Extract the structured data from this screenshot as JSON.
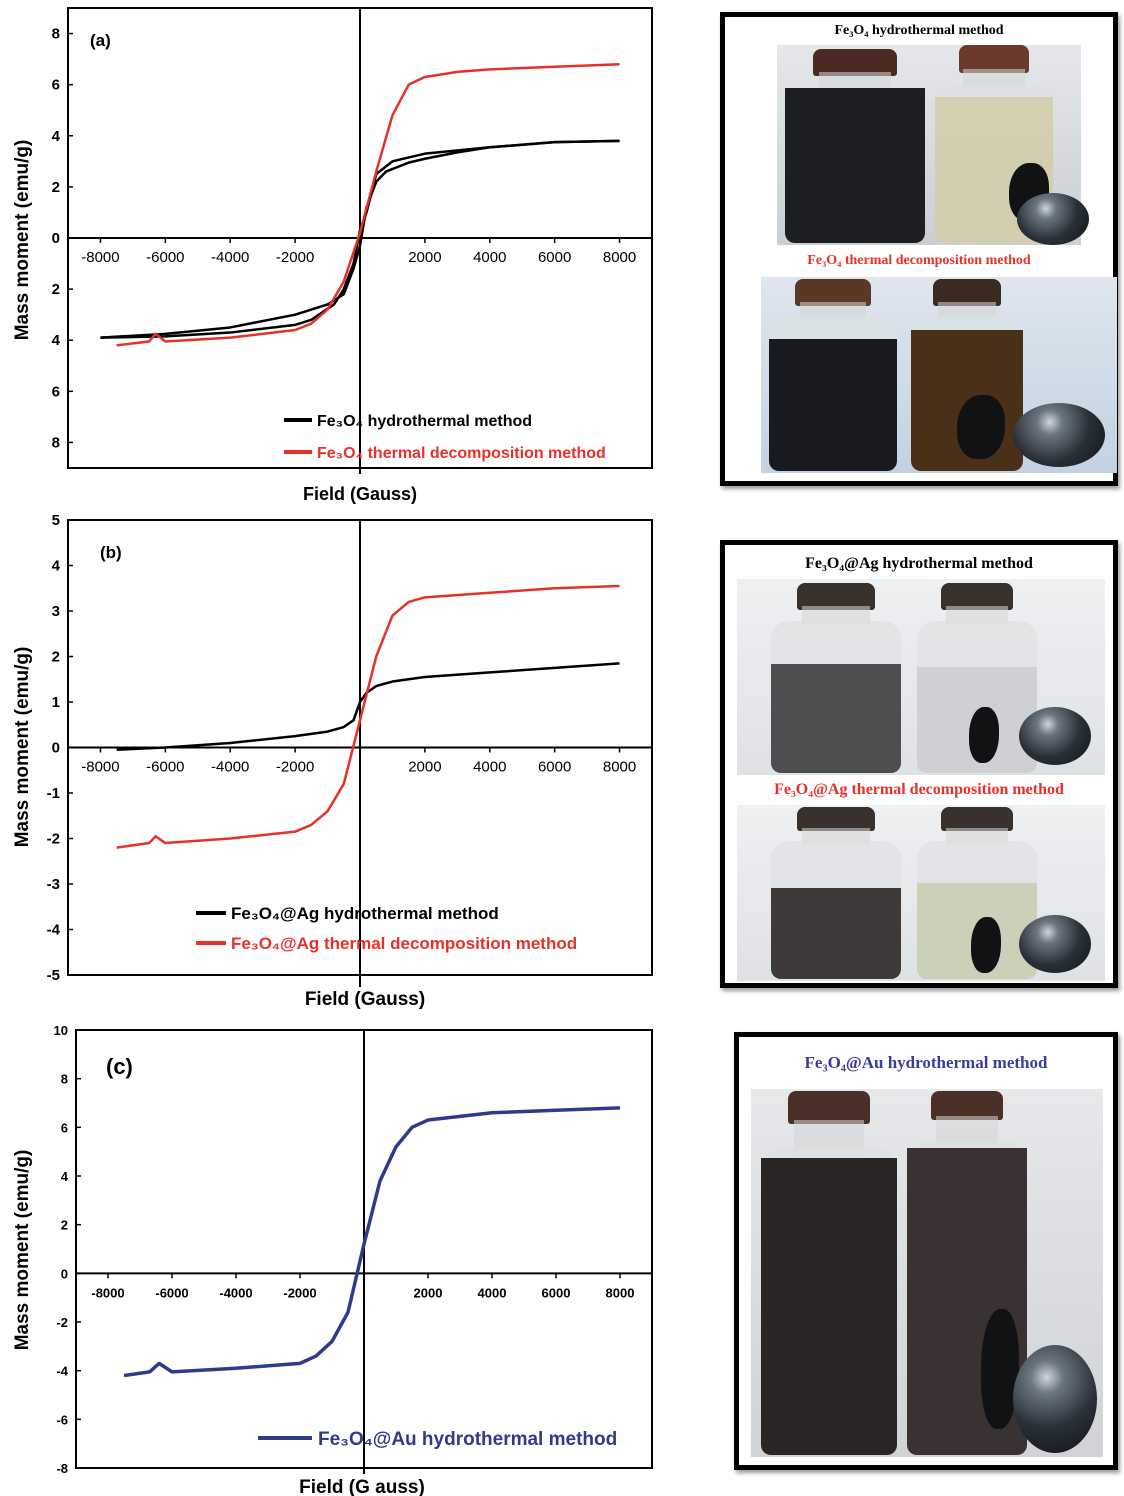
{
  "charts": [
    {
      "panel_label": "(a)",
      "xlabel": "Field (Gauss)",
      "ylabel": "Mass moment (emu/g)",
      "x_ticks": [
        "-8000",
        "-6000",
        "-4000",
        "-2000",
        "0",
        "2000",
        "4000",
        "6000",
        "8000"
      ],
      "y_ticks": [
        "8",
        "6",
        "4",
        "2",
        "0",
        "2",
        "4",
        "6",
        "8"
      ],
      "legend": [
        "Fe₃O₄ hydrothermal method",
        "Fe₃O₄ thermal decomposition method"
      ]
    },
    {
      "panel_label": "(b)",
      "xlabel": "Field (Gauss)",
      "ylabel": "Mass moment (emu/g)",
      "x_ticks": [
        "-8000",
        "-6000",
        "-4000",
        "-2000",
        "0",
        "2000",
        "4000",
        "6000",
        "8000"
      ],
      "y_ticks": [
        "5",
        "4",
        "3",
        "2",
        "1",
        "0",
        "-1",
        "-2",
        "-3",
        "-4",
        "-5"
      ],
      "legend": [
        "Fe₃O₄@Ag hydrothermal method",
        "Fe₃O₄@Ag thermal decomposition method"
      ]
    },
    {
      "panel_label": "(c)",
      "xlabel": "Field (G auss)",
      "ylabel": "Mass moment (emu/g)",
      "x_ticks": [
        "-8000",
        "-6000",
        "-4000",
        "-2000",
        "0",
        "2000",
        "4000",
        "6000",
        "8000"
      ],
      "y_ticks": [
        "10",
        "8",
        "6",
        "4",
        "2",
        "0",
        "-2",
        "-4",
        "-6",
        "-8"
      ],
      "legend": [
        "Fe₃O₄@Au hydrothermal method"
      ]
    }
  ],
  "photos": {
    "a_top": "Fe₃O₄ hydrothermal method",
    "a_bottom": "Fe₃O₄ thermal decomposition method",
    "b_top": "Fe₃O₄@Ag hydrothermal method",
    "b_bottom": "Fe₃O₄@Ag thermal decomposition method",
    "c_top": "Fe₃O₄@Au hydrothermal method"
  },
  "colors": {
    "black_series": "#000000",
    "red_series": "#e8302a",
    "blue_series": "#2e3a8c",
    "axis": "#000000"
  },
  "chart_data": [
    {
      "type": "line",
      "title": "(a)",
      "xlabel": "Field (Gauss)",
      "ylabel": "Mass moment (emu/g)",
      "xlim": [
        -9000,
        9000
      ],
      "ylim": [
        -9,
        9
      ],
      "grid": false,
      "legend_position": "bottom-right",
      "series": [
        {
          "name": "Fe₃O₄ hydrothermal method",
          "color": "#000000",
          "x": [
            -8000,
            -6000,
            -4000,
            -2000,
            -1000,
            -500,
            -200,
            0,
            200,
            500,
            800,
            1500,
            2000,
            3000,
            4000,
            6000,
            8000
          ],
          "y": [
            -3.9,
            -3.75,
            -3.5,
            -3.0,
            -2.6,
            -2.2,
            -1.2,
            -0.3,
            1.2,
            2.2,
            2.6,
            2.95,
            3.1,
            3.35,
            3.55,
            3.75,
            3.8
          ],
          "x_return": [
            8000,
            6000,
            4000,
            2000,
            1000,
            500,
            200,
            0,
            -200,
            -500,
            -800,
            -1500,
            -2000,
            -4000,
            -6000,
            -8000
          ],
          "y_return": [
            3.8,
            3.75,
            3.55,
            3.3,
            3.0,
            2.5,
            1.0,
            0.3,
            -1.0,
            -2.0,
            -2.6,
            -3.2,
            -3.4,
            -3.7,
            -3.85,
            -3.9
          ]
        },
        {
          "name": "Fe₃O₄ thermal decomposition method",
          "color": "#e8302a",
          "x": [
            -7500,
            -6500,
            -6300,
            -6000,
            -4000,
            -2000,
            -1500,
            -1000,
            -500,
            0,
            500,
            1000,
            1500,
            2000,
            3000,
            4000,
            6000,
            8000
          ],
          "y": [
            -4.2,
            -4.05,
            -3.75,
            -4.05,
            -3.9,
            -3.6,
            -3.35,
            -2.8,
            -1.7,
            0.2,
            2.6,
            4.8,
            6.0,
            6.3,
            6.5,
            6.6,
            6.7,
            6.8
          ]
        }
      ]
    },
    {
      "type": "line",
      "title": "(b)",
      "xlabel": "Field (Gauss)",
      "ylabel": "Mass moment (emu/g)",
      "xlim": [
        -9000,
        9000
      ],
      "ylim": [
        -5,
        5
      ],
      "grid": false,
      "legend_position": "bottom-right",
      "series": [
        {
          "name": "Fe₃O₄@Ag hydrothermal method",
          "color": "#000000",
          "x": [
            -7500,
            -6000,
            -4000,
            -2000,
            -1000,
            -500,
            -200,
            0,
            200,
            500,
            1000,
            2000,
            4000,
            6000,
            8000
          ],
          "y": [
            -0.05,
            0.0,
            0.1,
            0.25,
            0.35,
            0.45,
            0.6,
            1.0,
            1.2,
            1.35,
            1.45,
            1.55,
            1.65,
            1.75,
            1.85
          ]
        },
        {
          "name": "Fe₃O₄@Ag thermal decomposition method",
          "color": "#e8302a",
          "x": [
            -7500,
            -6500,
            -6300,
            -6000,
            -4000,
            -2000,
            -1500,
            -1000,
            -500,
            0,
            500,
            1000,
            1500,
            2000,
            4000,
            6000,
            8000
          ],
          "y": [
            -2.2,
            -2.1,
            -1.95,
            -2.1,
            -2.0,
            -1.85,
            -1.7,
            -1.4,
            -0.8,
            0.6,
            2.0,
            2.9,
            3.2,
            3.3,
            3.4,
            3.5,
            3.55
          ]
        }
      ]
    },
    {
      "type": "line",
      "title": "(c)",
      "xlabel": "Field (G auss)",
      "ylabel": "Mass moment (emu/g)",
      "xlim": [
        -9000,
        9000
      ],
      "ylim": [
        -8,
        10
      ],
      "grid": false,
      "legend_position": "bottom-right",
      "series": [
        {
          "name": "Fe₃O₄@Au hydrothermal method",
          "color": "#2e3a8c",
          "x": [
            -7500,
            -6700,
            -6400,
            -6000,
            -4000,
            -2000,
            -1500,
            -1000,
            -500,
            0,
            500,
            1000,
            1500,
            2000,
            4000,
            6000,
            8000
          ],
          "y": [
            -4.2,
            -4.05,
            -3.7,
            -4.05,
            -3.9,
            -3.7,
            -3.4,
            -2.8,
            -1.6,
            1.2,
            3.8,
            5.2,
            6.0,
            6.3,
            6.6,
            6.7,
            6.8
          ]
        }
      ]
    }
  ]
}
